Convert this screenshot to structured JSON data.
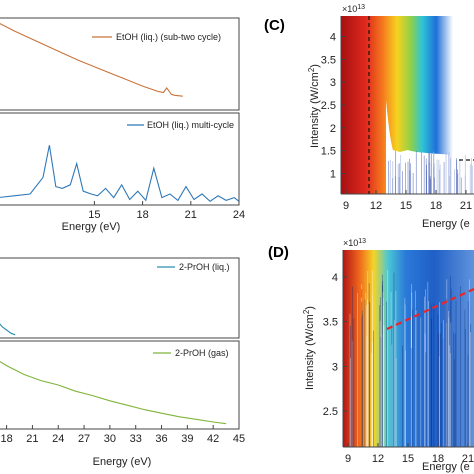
{
  "panel_labels": {
    "c": "(C)",
    "d": "(D)"
  },
  "colors": {
    "etoh_sub": "#c8733a",
    "etoh_multi": "#2f78b8",
    "prop_liq": "#2a8fb0",
    "prop_gas": "#7fb53a",
    "dashed_red": "#e8262a"
  },
  "chart_data": [
    {
      "type": "line",
      "panel": "A-top",
      "series": [
        {
          "name": "EtOH (liq.) (sub-two cycle)",
          "x": [
            9,
            10,
            11,
            12,
            13,
            14,
            15,
            16,
            17,
            18,
            19,
            19.3,
            19.5,
            19.8,
            20,
            20.5
          ],
          "y": [
            0.95,
            0.86,
            0.78,
            0.7,
            0.62,
            0.54,
            0.47,
            0.4,
            0.33,
            0.26,
            0.2,
            0.19,
            0.24,
            0.17,
            0.16,
            0.15
          ]
        }
      ],
      "xlim": [
        9,
        24
      ],
      "ylim": [
        0,
        1
      ]
    },
    {
      "type": "line",
      "panel": "A-bottom",
      "series": [
        {
          "name": "EtOH (liq.) multi-cycle",
          "x": [
            9,
            10,
            11,
            11.8,
            12.2,
            12.6,
            13,
            13.5,
            13.9,
            14.3,
            14.8,
            15.2,
            15.7,
            16.2,
            16.7,
            17.2,
            17.7,
            18.2,
            18.7,
            19.2,
            19.7,
            20.2,
            20.7,
            21.2,
            21.7,
            22.2,
            22.7,
            23.2,
            23.7,
            24
          ],
          "y": [
            0.08,
            0.1,
            0.12,
            0.3,
            0.65,
            0.2,
            0.18,
            0.22,
            0.45,
            0.15,
            0.12,
            0.1,
            0.18,
            0.08,
            0.22,
            0.06,
            0.15,
            0.05,
            0.4,
            0.08,
            0.12,
            0.05,
            0.2,
            0.06,
            0.12,
            0.04,
            0.1,
            0.05,
            0.08,
            0.04
          ]
        }
      ],
      "xlim": [
        9,
        24
      ],
      "ylim": [
        0,
        1
      ],
      "xticks": [
        15,
        18,
        21,
        24
      ],
      "xlabel": "Energy (eV)"
    },
    {
      "type": "line",
      "panel": "B-top",
      "series": [
        {
          "name": "2-PrOH (liq.)",
          "x": [
            17,
            17.5,
            18,
            18.5,
            19
          ],
          "y": [
            0.2,
            0.14,
            0.1,
            0.06,
            0.04
          ]
        }
      ],
      "xlim": [
        17,
        45
      ],
      "ylim": [
        0,
        1
      ]
    },
    {
      "type": "line",
      "panel": "B-bottom",
      "series": [
        {
          "name": "2-PrOH (gas)",
          "x": [
            17,
            18,
            20,
            22,
            24,
            26,
            28,
            30,
            32,
            34,
            36,
            38,
            40,
            42,
            43.5
          ],
          "y": [
            0.78,
            0.72,
            0.62,
            0.55,
            0.5,
            0.43,
            0.38,
            0.32,
            0.27,
            0.22,
            0.18,
            0.14,
            0.11,
            0.08,
            0.06
          ]
        }
      ],
      "xlim": [
        17,
        45
      ],
      "ylim": [
        0,
        1
      ],
      "xticks": [
        18,
        21,
        24,
        27,
        30,
        33,
        36,
        39,
        42,
        45
      ],
      "xlabel": "Energy (eV)"
    },
    {
      "type": "heatmap",
      "panel": "C",
      "xlabel": "Energy (e",
      "ylabel": "Intensity (W/cm",
      "ylabel_sup": "2",
      "ylabel_close": ")",
      "multiplier": "×10",
      "multiplier_exp": "13",
      "xticks": [
        9,
        12,
        15,
        18,
        21
      ],
      "xtick_labels": [
        "9",
        "12",
        "15",
        "18",
        "21"
      ],
      "xlim": [
        8.5,
        22.5
      ],
      "yticks": [
        1,
        1.5,
        2,
        2.5,
        3,
        3.5,
        4
      ],
      "ytick_labels": [
        "1",
        "1.5",
        "2",
        "2.5",
        "3",
        "3.5",
        "4"
      ],
      "ylim": [
        0.55,
        4.45
      ],
      "cutoff_energy": 12
    },
    {
      "type": "heatmap",
      "panel": "D",
      "xlabel": "Energy (e",
      "ylabel": "Intensity (W/cm",
      "ylabel_sup": "2",
      "ylabel_close": ")",
      "multiplier": "×10",
      "multiplier_exp": "13",
      "xticks": [
        9,
        12,
        15,
        18,
        21
      ],
      "xtick_labels": [
        "9",
        "12",
        "15",
        "18",
        "21"
      ],
      "xlim": [
        8.5,
        22.5
      ],
      "yticks": [
        2.5,
        3,
        3.5,
        4
      ],
      "ytick_labels": [
        "2.5",
        "3",
        "3.5",
        "4"
      ],
      "ylim": [
        2.1,
        4.3
      ]
    }
  ]
}
